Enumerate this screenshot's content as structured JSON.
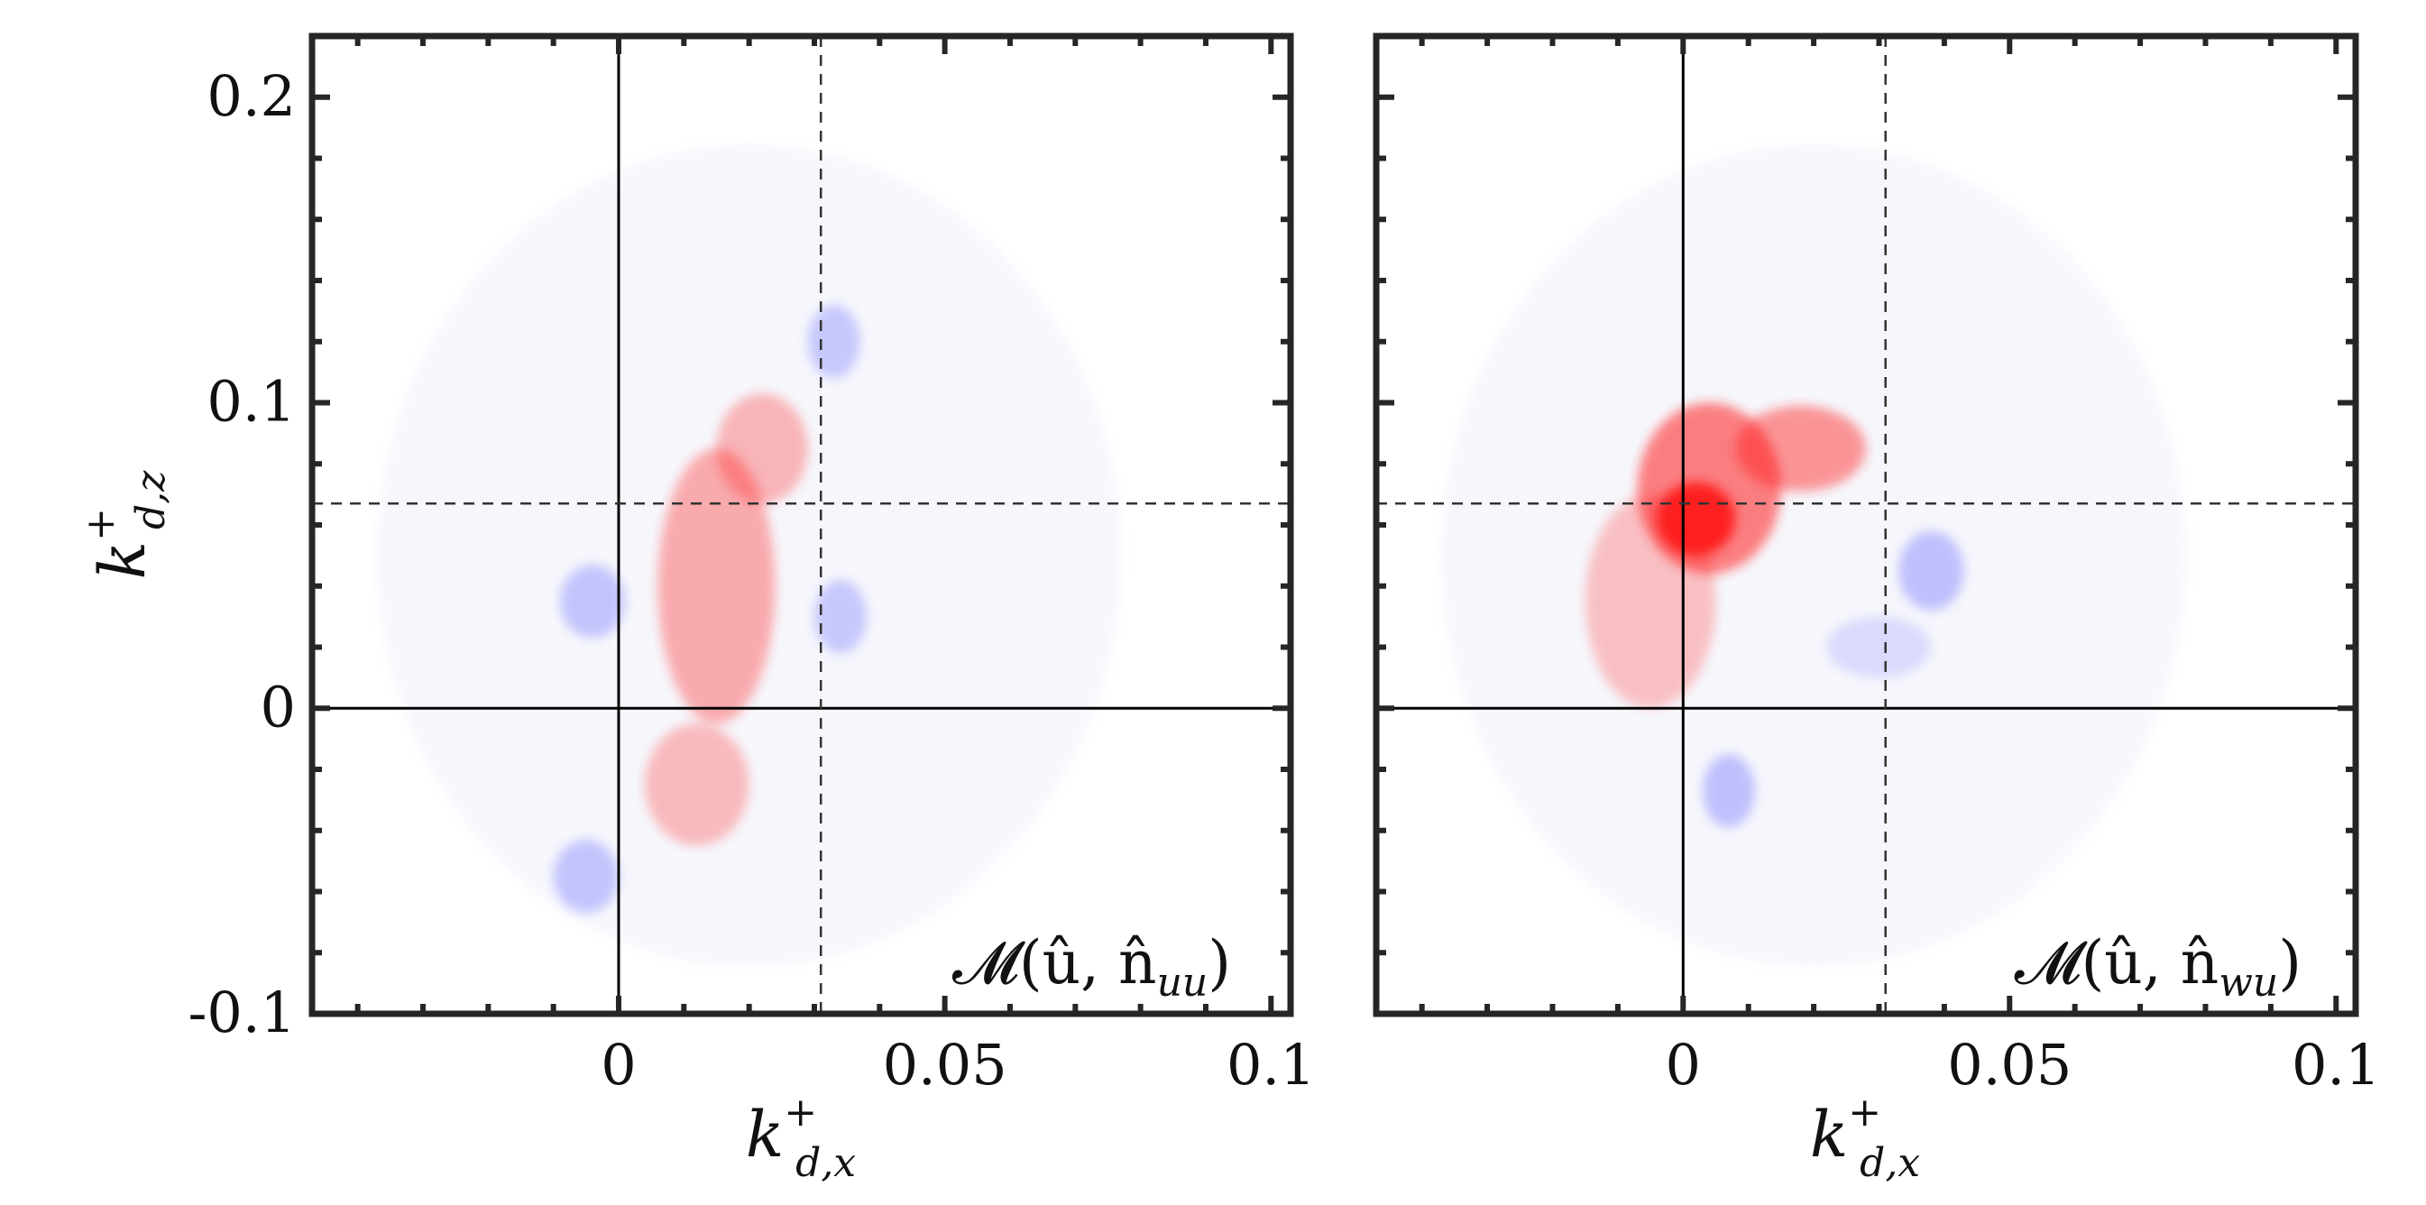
{
  "chart_data": [
    {
      "type": "heatmap",
      "panel": "left",
      "label": "𝓜(û, n̂uu)",
      "label_text": "𝓜(û, n̂",
      "label_sub": "uu",
      "label_close": ")",
      "xlabel": "k",
      "xlabel_sup": "+",
      "xlabel_sub": "d,x",
      "ylabel": "k",
      "ylabel_sup": "+",
      "ylabel_sub": "d,z",
      "xlim": [
        -0.047,
        0.103
      ],
      "ylim": [
        -0.1,
        0.22
      ],
      "x_ticks": [
        0,
        0.05,
        0.1
      ],
      "x_tick_labels": [
        "0",
        "0.05",
        "0.1"
      ],
      "y_ticks": [
        -0.1,
        0,
        0.1,
        0.2
      ],
      "y_tick_labels": [
        "-0.1",
        "0",
        "0.1",
        "0.2"
      ],
      "ref_lines": {
        "solid_x": 0,
        "solid_y": 0,
        "dashed_x": 0.031,
        "dashed_y": 0.067
      },
      "blobs": [
        {
          "x": 0.015,
          "y": 0.04,
          "sx": 0.009,
          "sy": 0.045,
          "value": 0.35,
          "sign": "positive"
        },
        {
          "x": 0.022,
          "y": 0.085,
          "sx": 0.007,
          "sy": 0.018,
          "value": 0.3,
          "sign": "positive"
        },
        {
          "x": 0.012,
          "y": -0.025,
          "sx": 0.008,
          "sy": 0.02,
          "value": 0.28,
          "sign": "positive"
        },
        {
          "x": -0.004,
          "y": 0.035,
          "sx": 0.005,
          "sy": 0.012,
          "value": 0.32,
          "sign": "negative"
        },
        {
          "x": -0.005,
          "y": -0.055,
          "sx": 0.005,
          "sy": 0.012,
          "value": 0.32,
          "sign": "negative"
        },
        {
          "x": 0.034,
          "y": 0.03,
          "sx": 0.004,
          "sy": 0.012,
          "value": 0.3,
          "sign": "negative"
        },
        {
          "x": 0.033,
          "y": 0.12,
          "sx": 0.004,
          "sy": 0.012,
          "value": 0.3,
          "sign": "negative"
        }
      ]
    },
    {
      "type": "heatmap",
      "panel": "right",
      "label": "𝓜(û, n̂wu)",
      "label_text": "𝓜(û, n̂",
      "label_sub": "wu",
      "label_close": ")",
      "xlabel": "k",
      "xlabel_sup": "+",
      "xlabel_sub": "d,x",
      "xlim": [
        -0.047,
        0.103
      ],
      "ylim": [
        -0.1,
        0.22
      ],
      "x_ticks": [
        0,
        0.05,
        0.1
      ],
      "x_tick_labels": [
        "0",
        "0.05",
        "0.1"
      ],
      "y_ticks": [
        -0.1,
        0,
        0.1,
        0.2
      ],
      "ref_lines": {
        "solid_x": 0,
        "solid_y": 0,
        "dashed_x": 0.031,
        "dashed_y": 0.067
      },
      "blobs": [
        {
          "x": 0.002,
          "y": 0.062,
          "sx": 0.006,
          "sy": 0.012,
          "value": 0.95,
          "sign": "positive"
        },
        {
          "x": 0.004,
          "y": 0.072,
          "sx": 0.011,
          "sy": 0.028,
          "value": 0.55,
          "sign": "positive"
        },
        {
          "x": 0.018,
          "y": 0.085,
          "sx": 0.01,
          "sy": 0.014,
          "value": 0.45,
          "sign": "positive"
        },
        {
          "x": -0.005,
          "y": 0.035,
          "sx": 0.01,
          "sy": 0.035,
          "value": 0.25,
          "sign": "positive"
        },
        {
          "x": 0.038,
          "y": 0.045,
          "sx": 0.005,
          "sy": 0.013,
          "value": 0.35,
          "sign": "negative"
        },
        {
          "x": 0.03,
          "y": 0.02,
          "sx": 0.008,
          "sy": 0.01,
          "value": 0.18,
          "sign": "negative"
        },
        {
          "x": 0.007,
          "y": -0.027,
          "sx": 0.004,
          "sy": 0.012,
          "value": 0.35,
          "sign": "negative"
        }
      ]
    }
  ]
}
